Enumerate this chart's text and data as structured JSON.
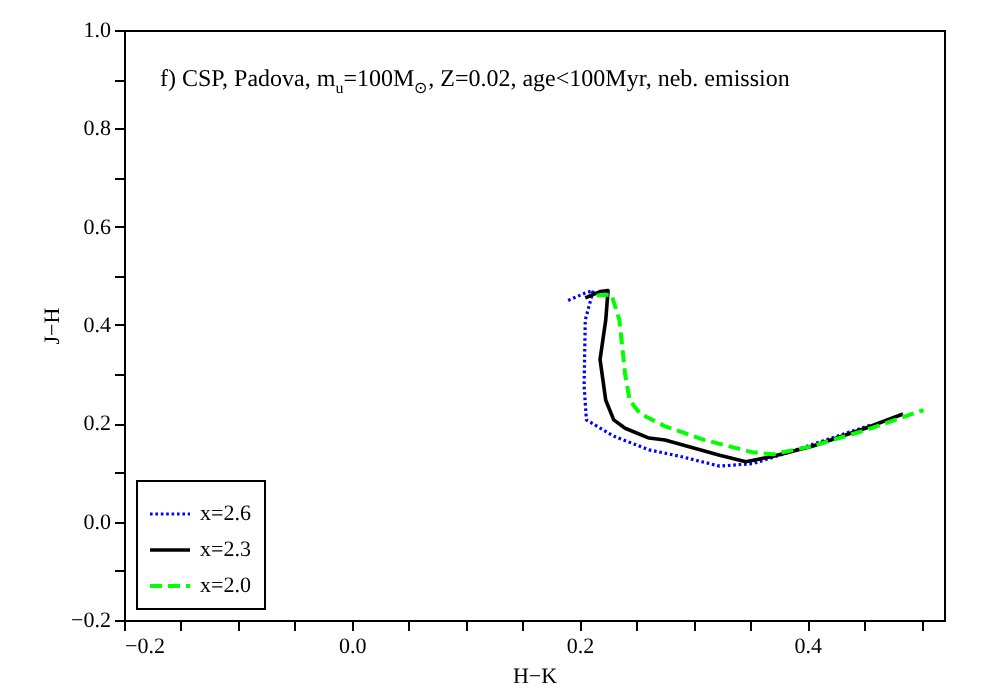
{
  "chart_data": {
    "type": "line",
    "title": "f) CSP, Padova, m$_{u}$=100M$_{⊙}$, Z=0.02, age<100Myr, neb. emission",
    "xlabel": "H−K",
    "ylabel": "J−H",
    "xlim": [
      -0.2,
      0.52
    ],
    "ylim": [
      -0.2,
      1.0
    ],
    "xticks": [
      {
        "value": -0.2,
        "label": "−0.2"
      },
      {
        "value": -0.15,
        "label": null
      },
      {
        "value": -0.1,
        "label": null
      },
      {
        "value": -0.05,
        "label": null
      },
      {
        "value": 0,
        "label": "0.0"
      },
      {
        "value": 0.05,
        "label": null
      },
      {
        "value": 0.1,
        "label": null
      },
      {
        "value": 0.15,
        "label": null
      },
      {
        "value": 0.2,
        "label": "0.2"
      },
      {
        "value": 0.25,
        "label": null
      },
      {
        "value": 0.3,
        "label": null
      },
      {
        "value": 0.35,
        "label": null
      },
      {
        "value": 0.4,
        "label": "0.4"
      },
      {
        "value": 0.45,
        "label": null
      },
      {
        "value": 0.5,
        "label": null
      }
    ],
    "yticks": [
      {
        "value": -0.2,
        "label": "−0.2"
      },
      {
        "value": -0.1,
        "label": null
      },
      {
        "value": 0,
        "label": "0.0"
      },
      {
        "value": 0.1,
        "label": null
      },
      {
        "value": 0.2,
        "label": "0.2"
      },
      {
        "value": 0.3,
        "label": null
      },
      {
        "value": 0.4,
        "label": "0.4"
      },
      {
        "value": 0.5,
        "label": null
      },
      {
        "value": 0.6,
        "label": "0.6"
      },
      {
        "value": 0.7,
        "label": null
      },
      {
        "value": 0.8,
        "label": "0.8"
      },
      {
        "value": 0.9,
        "label": null
      },
      {
        "value": 1.0,
        "label": "1.0"
      }
    ],
    "legend": "bottom left",
    "grid": false,
    "marker": "none",
    "series": [
      {
        "name": "x=2.6",
        "color": "#0000ff",
        "line_style": "dotted",
        "x": [
          0.19,
          0.205,
          0.212,
          0.205,
          0.204,
          0.206,
          0.23,
          0.261,
          0.288,
          0.323,
          0.352,
          0.381,
          0.416,
          0.455
        ],
        "values": [
          0.45,
          0.465,
          0.47,
          0.41,
          0.276,
          0.207,
          0.174,
          0.146,
          0.133,
          0.113,
          0.118,
          0.139,
          0.166,
          0.196
        ]
      },
      {
        "name": "x=2.3",
        "color": "#000000",
        "line_style": "solid",
        "x": [
          0.205,
          0.218,
          0.225,
          0.223,
          0.218,
          0.223,
          0.23,
          0.24,
          0.261,
          0.275,
          0.323,
          0.346,
          0.37,
          0.405,
          0.451,
          0.484
        ],
        "values": [
          0.455,
          0.468,
          0.47,
          0.41,
          0.33,
          0.247,
          0.207,
          0.19,
          0.17,
          0.166,
          0.135,
          0.122,
          0.133,
          0.154,
          0.19,
          0.219
        ]
      },
      {
        "name": "x=2.0",
        "color": "#00ff00",
        "line_style": "dashed",
        "x": [
          0.215,
          0.228,
          0.235,
          0.24,
          0.244,
          0.253,
          0.275,
          0.31,
          0.352,
          0.37,
          0.405,
          0.451,
          0.502
        ],
        "values": [
          0.46,
          0.462,
          0.41,
          0.3,
          0.247,
          0.22,
          0.194,
          0.166,
          0.141,
          0.137,
          0.154,
          0.186,
          0.227
        ]
      }
    ]
  }
}
